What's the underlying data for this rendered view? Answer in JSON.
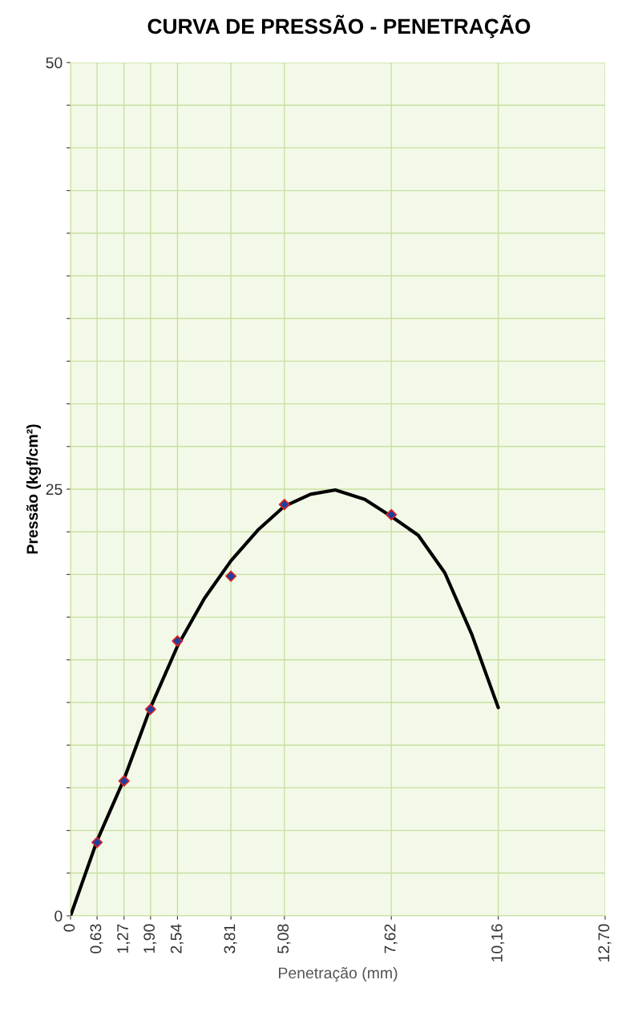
{
  "chart_data": {
    "type": "scatter",
    "title": "CURVA DE PRESSÃO - PENETRAÇÃO",
    "xlabel": "Penetração (mm)",
    "ylabel": "Pressão (kgf/cm²)",
    "series": [
      {
        "color": "#1f3f9f",
        "marker": "diamond",
        "x": [
          0.63,
          1.27,
          1.9,
          2.54,
          3.81,
          5.08,
          7.62
        ],
        "values": [
          4.3,
          7.9,
          12.1,
          16.1,
          19.9,
          24.1,
          23.5
        ]
      },
      {
        "type": "line",
        "color": "#000000",
        "marker": "none",
        "line_style": "solid",
        "x": [
          0,
          0.63,
          1.27,
          1.9,
          2.54,
          3.18,
          3.81,
          4.45,
          5.08,
          5.7,
          6.29,
          6.99,
          7.62,
          8.26,
          8.89,
          9.53,
          10.16
        ],
        "values": [
          0,
          4.4,
          8.0,
          12.2,
          15.8,
          18.6,
          20.8,
          22.6,
          24.0,
          24.7,
          24.95,
          24.4,
          23.4,
          22.3,
          20.1,
          16.5,
          12.2
        ]
      }
    ],
    "xlim": [
      0,
      12.7
    ],
    "xticks": [
      0,
      {
        "value": 0.63,
        "label": "0,63"
      },
      {
        "value": 1.27,
        "label": "1,27"
      },
      {
        "value": 1.9,
        "label": "1,90"
      },
      {
        "value": 2.54,
        "label": "2,54"
      },
      {
        "value": 3.81,
        "label": "3,81"
      },
      {
        "value": 5.08,
        "label": "5,08"
      },
      {
        "value": 7.62,
        "label": "7,62"
      },
      {
        "value": 10.16,
        "label": "10,16"
      },
      {
        "value": 12.7,
        "label": "12,70"
      }
    ],
    "ylim": [
      0,
      50
    ],
    "yticks": [
      0,
      {
        "value": 2.5,
        "label": null
      },
      {
        "value": 5,
        "label": null
      },
      {
        "value": 7.5,
        "label": null
      },
      {
        "value": 10,
        "label": null
      },
      {
        "value": 12.5,
        "label": null
      },
      {
        "value": 15,
        "label": null
      },
      {
        "value": 17.5,
        "label": null
      },
      {
        "value": 20,
        "label": null
      },
      {
        "value": 22.5,
        "label": null
      },
      25,
      {
        "value": 27.5,
        "label": null
      },
      {
        "value": 30,
        "label": null
      },
      {
        "value": 32.5,
        "label": null
      },
      {
        "value": 35,
        "label": null
      },
      {
        "value": 37.5,
        "label": null
      },
      {
        "value": 40,
        "label": null
      },
      {
        "value": 42.5,
        "label": null
      },
      {
        "value": 45,
        "label": null
      },
      {
        "value": 47.5,
        "label": null
      },
      50
    ],
    "grid": true,
    "legend": false
  }
}
